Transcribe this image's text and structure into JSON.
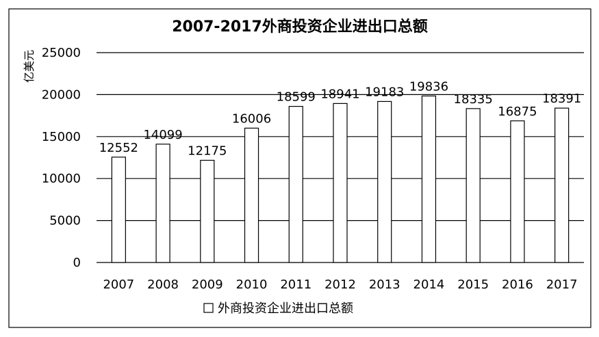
{
  "chart_data": {
    "type": "bar",
    "title": "2007-2017外商投资企业进出口总额",
    "ylabel": "亿美元",
    "xlabel": "",
    "categories": [
      "2007",
      "2008",
      "2009",
      "2010",
      "2011",
      "2012",
      "2013",
      "2014",
      "2015",
      "2016",
      "2017"
    ],
    "series": [
      {
        "name": "外商投资企业进出口总额",
        "values": [
          12552,
          14099,
          12175,
          16006,
          18599,
          18941,
          19183,
          19836,
          18335,
          16875,
          18391
        ]
      }
    ],
    "ylim": [
      0,
      25000
    ],
    "yticks": [
      0,
      5000,
      10000,
      15000,
      20000,
      25000
    ],
    "grid": true,
    "legend_position": "bottom",
    "data_labels": true,
    "colors": {
      "bar_fill": "#ffffff",
      "bar_stroke": "#000000",
      "grid": "#000000",
      "border": "#000000"
    }
  }
}
